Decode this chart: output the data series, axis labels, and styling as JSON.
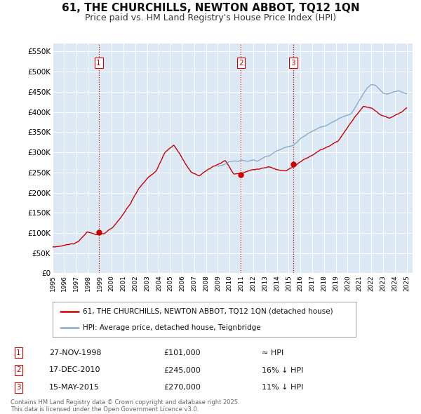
{
  "title": "61, THE CHURCHILLS, NEWTON ABBOT, TQ12 1QN",
  "subtitle": "Price paid vs. HM Land Registry's House Price Index (HPI)",
  "title_fontsize": 11,
  "subtitle_fontsize": 9,
  "background_color": "#ffffff",
  "plot_bg_color": "#dce9f5",
  "grid_color": "#ffffff",
  "legend_label_red": "61, THE CHURCHILLS, NEWTON ABBOT, TQ12 1QN (detached house)",
  "legend_label_blue": "HPI: Average price, detached house, Teignbridge",
  "transaction_markers": [
    {
      "num": 1,
      "date_x": 1998.9,
      "price": 101000,
      "label": "27-NOV-1998",
      "amount": "£101,000",
      "rel": "≈ HPI"
    },
    {
      "num": 2,
      "date_x": 2010.96,
      "price": 245000,
      "label": "17-DEC-2010",
      "amount": "£245,000",
      "rel": "16% ↓ HPI"
    },
    {
      "num": 3,
      "date_x": 2015.37,
      "price": 270000,
      "label": "15-MAY-2015",
      "amount": "£270,000",
      "rel": "11% ↓ HPI"
    }
  ],
  "vline_color": "#cc0000",
  "marker_color": "#cc0000",
  "red_line_color": "#cc0000",
  "blue_line_color": "#88aacc",
  "ylim": [
    0,
    570000
  ],
  "xlim": [
    1995,
    2025.5
  ],
  "yticks": [
    0,
    50000,
    100000,
    150000,
    200000,
    250000,
    300000,
    350000,
    400000,
    450000,
    500000,
    550000
  ],
  "ytick_labels": [
    "£0",
    "£50K",
    "£100K",
    "£150K",
    "£200K",
    "£250K",
    "£300K",
    "£350K",
    "£400K",
    "£450K",
    "£500K",
    "£550K"
  ],
  "xticks": [
    1995,
    1996,
    1997,
    1998,
    1999,
    2000,
    2001,
    2002,
    2003,
    2004,
    2005,
    2006,
    2007,
    2008,
    2009,
    2010,
    2011,
    2012,
    2013,
    2014,
    2015,
    2016,
    2017,
    2018,
    2019,
    2020,
    2021,
    2022,
    2023,
    2024,
    2025
  ],
  "footnote": "Contains HM Land Registry data © Crown copyright and database right 2025.\nThis data is licensed under the Open Government Licence v3.0."
}
